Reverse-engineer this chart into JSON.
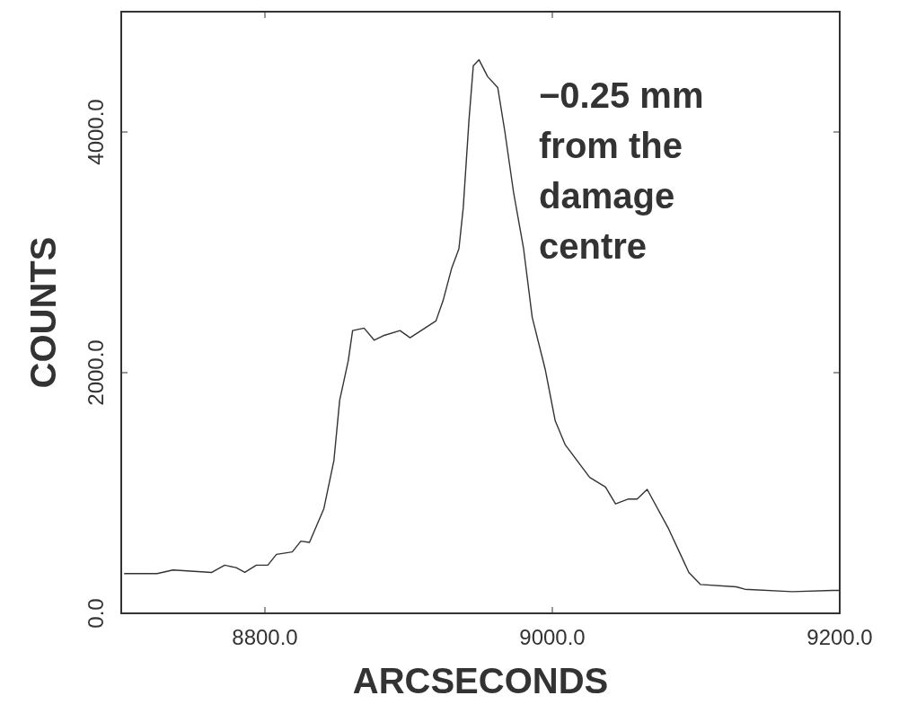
{
  "chart_data": {
    "type": "line",
    "xlabel": "ARCSECONDS",
    "ylabel": "COUNTS",
    "annotations": [
      "−0.25 mm\nfrom the\ndamage\ncentre"
    ],
    "xlim": [
      8700,
      9200
    ],
    "ylim": [
      0,
      5000
    ],
    "xticks": [
      {
        "value": 8800,
        "label": "8800.0"
      },
      {
        "value": 9000,
        "label": "9000.0"
      },
      {
        "value": 9200,
        "label": "9200.0"
      }
    ],
    "yticks": [
      {
        "value": 0,
        "label": "0.0"
      },
      {
        "value": 2000,
        "label": "2000.0"
      },
      {
        "value": 4000,
        "label": "4000.0"
      }
    ],
    "grid": false,
    "marker": "none",
    "line_style": "solid",
    "series": [
      {
        "color": "#333333",
        "x": [
          8702,
          8725,
          8736,
          8763,
          8772,
          8780,
          8786,
          8794,
          8802,
          8808,
          8819,
          8825,
          8831,
          8841,
          8848,
          8852,
          8858,
          8861,
          8869,
          8876,
          8883,
          8894,
          8901,
          8919,
          8924,
          8930,
          8935,
          8938,
          8942,
          8945,
          8949,
          8955,
          8962,
          8967,
          8973,
          8980,
          8986,
          8995,
          9002,
          9009,
          9026,
          9037,
          9044,
          9053,
          9059,
          9066,
          9081,
          9095,
          9103,
          9128,
          9134,
          9167,
          9195,
          9200
        ],
        "values": [
          330,
          330,
          360,
          340,
          400,
          380,
          340,
          400,
          400,
          490,
          510,
          600,
          590,
          870,
          1270,
          1770,
          2100,
          2350,
          2370,
          2270,
          2310,
          2350,
          2290,
          2430,
          2600,
          2870,
          3030,
          3370,
          4100,
          4550,
          4600,
          4460,
          4370,
          4000,
          3500,
          3030,
          2460,
          2030,
          1600,
          1400,
          1130,
          1050,
          910,
          950,
          950,
          1030,
          700,
          340,
          240,
          220,
          200,
          180,
          190,
          190
        ]
      }
    ]
  }
}
